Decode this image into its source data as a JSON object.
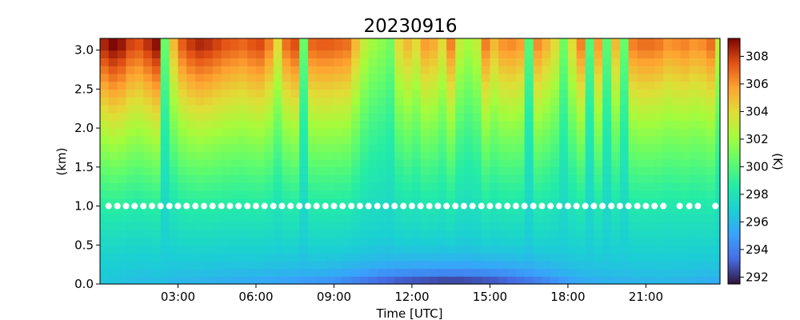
{
  "chart_data": {
    "type": "heatmap",
    "title": "20230916",
    "xlabel": "Time [UTC]",
    "ylabel": "(km)",
    "colorbar_label": "(K)",
    "xlim": [
      0,
      23.85
    ],
    "ylim": [
      0,
      3.15
    ],
    "x_ticks": [
      {
        "value": 3,
        "label": "03:00"
      },
      {
        "value": 6,
        "label": "06:00"
      },
      {
        "value": 9,
        "label": "09:00"
      },
      {
        "value": 12,
        "label": "12:00"
      },
      {
        "value": 15,
        "label": "15:00"
      },
      {
        "value": 18,
        "label": "18:00"
      },
      {
        "value": 21,
        "label": "21:00"
      }
    ],
    "y_ticks": [
      {
        "value": 0.0,
        "label": "0.0"
      },
      {
        "value": 0.5,
        "label": "0.5"
      },
      {
        "value": 1.0,
        "label": "1.0"
      },
      {
        "value": 1.5,
        "label": "1.5"
      },
      {
        "value": 2.0,
        "label": "2.0"
      },
      {
        "value": 2.5,
        "label": "2.5"
      },
      {
        "value": 3.0,
        "label": "3.0"
      }
    ],
    "colorbar": {
      "colormap": "turbo",
      "range": [
        291.5,
        309.3
      ],
      "ticks": [
        {
          "value": 292,
          "label": "292"
        },
        {
          "value": 294,
          "label": "294"
        },
        {
          "value": 296,
          "label": "296"
        },
        {
          "value": 298,
          "label": "298"
        },
        {
          "value": 300,
          "label": "300"
        },
        {
          "value": 302,
          "label": "302"
        },
        {
          "value": 304,
          "label": "304"
        },
        {
          "value": 306,
          "label": "306"
        },
        {
          "value": 308,
          "label": "308"
        }
      ]
    },
    "profile_times": [
      0.0,
      0.33,
      0.67,
      1.0,
      1.33,
      1.67,
      2.0,
      2.33,
      2.67,
      3.0,
      3.33,
      3.67,
      4.0,
      4.33,
      4.67,
      5.0,
      5.33,
      5.67,
      6.0,
      6.33,
      6.67,
      7.0,
      7.33,
      7.67,
      8.0,
      8.33,
      8.67,
      9.0,
      9.33,
      9.67,
      10.0,
      10.33,
      10.67,
      11.0,
      11.33,
      11.67,
      12.0,
      12.33,
      12.67,
      13.0,
      13.33,
      13.67,
      14.0,
      14.33,
      14.67,
      15.0,
      15.33,
      15.67,
      16.0,
      16.33,
      16.67,
      17.0,
      17.33,
      17.67,
      18.0,
      18.33,
      18.67,
      19.0,
      19.33,
      19.67,
      20.0,
      20.33,
      20.67,
      21.0,
      21.33,
      21.67,
      22.0,
      22.33,
      22.67,
      23.0,
      23.33,
      23.67
    ],
    "top_temperature_k": [
      308.5,
      309.2,
      308.8,
      307.8,
      307.5,
      308.2,
      309.0,
      300.5,
      305.0,
      307.2,
      308.0,
      308.4,
      308.2,
      307.8,
      307.4,
      307.2,
      307.0,
      307.4,
      307.6,
      306.5,
      304.0,
      306.8,
      307.5,
      300.5,
      307.0,
      307.2,
      307.2,
      307.0,
      306.8,
      305.0,
      303.0,
      302.0,
      301.5,
      300.8,
      304.0,
      305.0,
      304.0,
      305.8,
      305.4,
      304.0,
      306.4,
      303.0,
      302.2,
      303.0,
      306.5,
      305.0,
      306.0,
      306.2,
      305.8,
      300.0,
      306.2,
      305.2,
      304.0,
      300.8,
      304.0,
      306.4,
      300.0,
      305.8,
      300.2,
      305.0,
      300.5,
      306.4,
      306.8,
      306.8,
      306.6,
      306.0,
      306.2,
      306.4,
      306.0,
      306.2,
      306.8,
      303.0
    ],
    "surface_temperature_k": [
      296.5,
      296.4,
      296.3,
      296.2,
      296.1,
      296.0,
      296.1,
      296.0,
      295.8,
      295.7,
      295.6,
      295.6,
      295.5,
      295.4,
      295.3,
      295.2,
      295.2,
      295.1,
      295.0,
      294.9,
      294.8,
      294.7,
      294.6,
      294.5,
      294.4,
      294.3,
      294.2,
      294.0,
      293.7,
      293.4,
      293.1,
      292.8,
      292.5,
      292.3,
      292.1,
      292.0,
      291.9,
      291.8,
      291.7,
      291.6,
      291.6,
      291.6,
      291.7,
      291.8,
      291.9,
      292.0,
      292.2,
      292.4,
      292.7,
      293.0,
      293.3,
      293.7,
      294.1,
      294.5,
      294.8,
      295.0,
      295.2,
      295.3,
      295.4,
      295.5,
      295.5,
      295.6,
      295.6,
      295.6,
      295.7,
      295.7,
      295.6,
      295.6,
      295.5,
      295.4,
      295.3,
      295.2
    ],
    "marker_series": {
      "height_km": 1.0,
      "color": "#ffffff",
      "times": [
        0.33,
        0.67,
        1.0,
        1.33,
        1.67,
        2.0,
        2.33,
        2.67,
        3.0,
        3.33,
        3.67,
        4.0,
        4.33,
        4.67,
        5.0,
        5.33,
        5.67,
        6.0,
        6.33,
        6.67,
        7.0,
        7.33,
        7.67,
        8.0,
        8.33,
        8.67,
        9.0,
        9.33,
        9.67,
        10.0,
        10.33,
        10.67,
        11.0,
        11.33,
        11.67,
        12.0,
        12.33,
        12.67,
        13.0,
        13.33,
        13.67,
        14.0,
        14.33,
        14.67,
        15.0,
        15.33,
        15.67,
        16.0,
        16.33,
        16.67,
        17.0,
        17.33,
        17.67,
        18.0,
        18.33,
        18.67,
        19.0,
        19.33,
        19.67,
        20.0,
        20.33,
        20.67,
        21.0,
        21.33,
        21.67,
        22.3,
        22.67,
        23.0,
        23.67
      ]
    }
  }
}
